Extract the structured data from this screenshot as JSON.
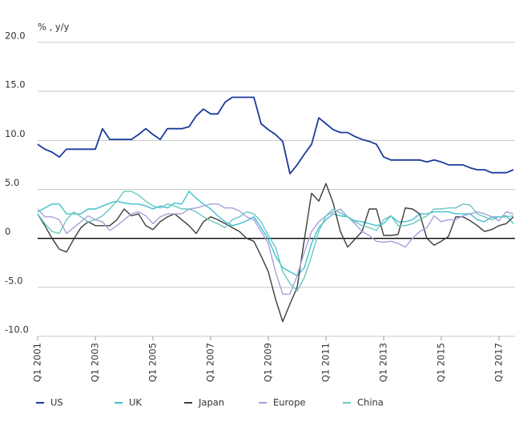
{
  "chart_data": {
    "type": "line",
    "y_label": "% , y/y",
    "categories": [
      "Q1 2001",
      null,
      null,
      null,
      null,
      null,
      null,
      null,
      "Q1 2003",
      null,
      null,
      null,
      null,
      null,
      null,
      null,
      "Q1 2005",
      null,
      null,
      null,
      null,
      null,
      null,
      null,
      "Q1 2007",
      null,
      null,
      null,
      null,
      null,
      null,
      null,
      "Q1 2009",
      null,
      null,
      null,
      null,
      null,
      null,
      null,
      "Q1 2011",
      null,
      null,
      null,
      null,
      null,
      null,
      null,
      "Q1 2013",
      null,
      null,
      null,
      null,
      null,
      null,
      null,
      "Q1 2015",
      null,
      null,
      null,
      null,
      null,
      null,
      null,
      "Q1 2017",
      null,
      null
    ],
    "series": [
      {
        "name": "US",
        "color": "#1b3a9c",
        "values": [
          9.6,
          9.1,
          8.8,
          8.3,
          9.1,
          9.1,
          9.1,
          9.1,
          9.1,
          11.2,
          10.1,
          10.1,
          10.1,
          10.1,
          10.6,
          11.2,
          10.6,
          10.1,
          11.2,
          11.2,
          11.2,
          11.4,
          12.5,
          13.2,
          12.7,
          12.7,
          13.9,
          14.4,
          14.4,
          14.4,
          14.4,
          11.7,
          11.1,
          10.6,
          9.9,
          6.6,
          7.5,
          8.6,
          9.6,
          12.3,
          11.7,
          11.1,
          10.8,
          10.8,
          10.4,
          10.1,
          9.9,
          9.6,
          8.3,
          8.0,
          8.0,
          8.0,
          8.0,
          8.0,
          7.8,
          8.0,
          7.8,
          7.5,
          7.5,
          7.5,
          7.2,
          7.0,
          7.0,
          6.7,
          6.7,
          6.7,
          7.0
        ]
      },
      {
        "name": "UK",
        "color": "#3fc0cf",
        "values": [
          2.7,
          3.1,
          3.5,
          3.5,
          2.5,
          2.5,
          2.5,
          3.0,
          3.0,
          3.3,
          3.6,
          3.8,
          3.6,
          3.5,
          3.5,
          3.3,
          3.0,
          3.3,
          3.1,
          3.6,
          3.5,
          4.8,
          4.1,
          3.5,
          3.0,
          2.3,
          1.7,
          1.3,
          1.5,
          1.8,
          2.2,
          1.1,
          -0.1,
          -1.8,
          -3.0,
          -3.4,
          -3.8,
          -3.0,
          -0.5,
          1.1,
          1.9,
          2.5,
          2.3,
          2.2,
          1.8,
          1.7,
          1.5,
          1.3,
          1.5,
          2.3,
          1.7,
          1.7,
          1.9,
          2.5,
          2.5,
          2.7,
          2.7,
          2.7,
          2.5,
          2.5,
          2.5,
          1.9,
          1.7,
          2.2,
          2.2,
          2.3,
          1.5
        ]
      },
      {
        "name": "Japan",
        "color": "#3d3d3d",
        "values": [
          2.5,
          1.3,
          0.0,
          -1.1,
          -1.4,
          -0.1,
          1.1,
          1.7,
          1.3,
          1.3,
          1.3,
          1.9,
          3.0,
          2.3,
          2.5,
          1.3,
          0.9,
          1.7,
          2.2,
          2.5,
          1.9,
          1.3,
          0.5,
          1.7,
          2.2,
          1.9,
          1.5,
          1.1,
          0.7,
          0.0,
          -0.3,
          -1.8,
          -3.4,
          -6.2,
          -8.5,
          -6.7,
          -5.0,
          -0.1,
          4.6,
          3.8,
          5.6,
          3.6,
          0.7,
          -0.9,
          -0.1,
          0.7,
          3.0,
          3.0,
          0.3,
          0.3,
          0.4,
          3.1,
          3.0,
          2.5,
          0.0,
          -0.7,
          -0.3,
          0.2,
          2.2,
          2.2,
          1.8,
          1.3,
          0.7,
          0.9,
          1.3,
          1.5,
          2.2
        ]
      },
      {
        "name": "Europe",
        "color": "#a99fdc",
        "values": [
          3.0,
          2.2,
          2.2,
          1.9,
          0.5,
          1.1,
          1.7,
          2.3,
          1.9,
          1.7,
          0.8,
          1.3,
          1.9,
          2.5,
          2.7,
          2.3,
          1.5,
          2.2,
          2.5,
          2.5,
          2.5,
          3.0,
          3.1,
          3.3,
          3.5,
          3.5,
          3.1,
          3.1,
          2.8,
          2.2,
          1.9,
          0.7,
          -0.5,
          -3.4,
          -5.7,
          -5.7,
          -3.8,
          -1.4,
          0.7,
          1.7,
          2.3,
          2.7,
          3.0,
          2.2,
          1.5,
          0.7,
          0.3,
          -0.3,
          -0.4,
          -0.3,
          -0.5,
          -0.9,
          0.0,
          0.7,
          1.1,
          2.3,
          1.7,
          1.9,
          1.9,
          2.3,
          2.5,
          2.7,
          2.5,
          2.2,
          1.8,
          2.7,
          2.5
        ]
      },
      {
        "name": "China",
        "color": "#69c7c1",
        "values": [
          2.5,
          1.5,
          0.7,
          0.5,
          1.9,
          2.7,
          2.2,
          1.7,
          1.9,
          2.3,
          3.0,
          3.8,
          4.8,
          4.8,
          4.4,
          3.8,
          3.3,
          3.1,
          3.5,
          3.3,
          3.0,
          3.0,
          2.7,
          2.2,
          1.8,
          1.5,
          1.1,
          1.9,
          2.2,
          2.7,
          2.5,
          1.7,
          0.3,
          -0.9,
          -3.4,
          -4.6,
          -5.4,
          -4.0,
          -1.8,
          0.7,
          2.3,
          3.0,
          2.6,
          2.2,
          1.7,
          1.3,
          1.1,
          0.8,
          1.9,
          2.3,
          1.3,
          1.3,
          1.5,
          1.9,
          2.3,
          3.0,
          3.0,
          3.1,
          3.1,
          3.5,
          3.4,
          2.5,
          2.2,
          1.9,
          2.2,
          2.2,
          2.3
        ]
      }
    ],
    "ylim": [
      -10,
      20
    ],
    "yticks": [
      {
        "value": 20,
        "label": "20.0"
      },
      {
        "value": 15,
        "label": "15.0"
      },
      {
        "value": 10,
        "label": "10.0"
      },
      {
        "value": 5,
        "label": "5.0"
      },
      0,
      {
        "value": -5,
        "label": "-5.0"
      },
      {
        "value": -10,
        "label": "-10.0"
      }
    ],
    "grid": true,
    "legend": "bottom"
  }
}
